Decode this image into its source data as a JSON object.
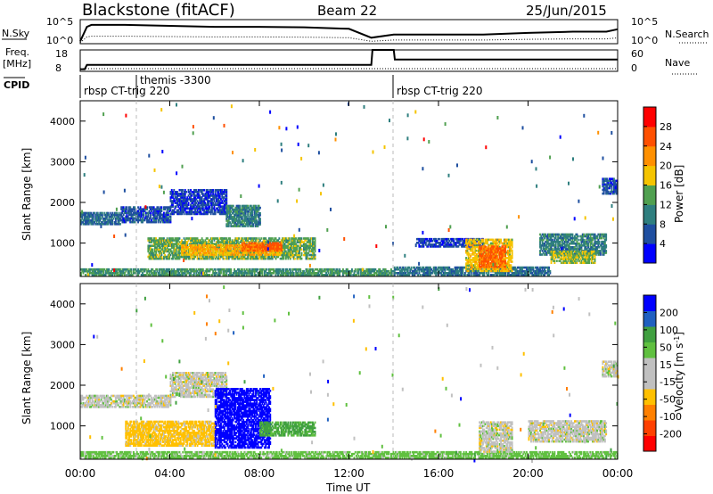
{
  "header": {
    "station": "Blackstone (fitACF)",
    "beam": "Beam 22",
    "date": "25/Jun/2015"
  },
  "top_panels": {
    "nsky_label": "N.Sky",
    "nsky_ticks": [
      "10^5",
      "10^0"
    ],
    "nsearch_label": "N.Search",
    "nsearch_ticks": [
      "10^5",
      "10^0"
    ],
    "freq_label": "Freq.",
    "freq_unit": "[MHz]",
    "freq_ticks": [
      "18",
      "8"
    ],
    "nave_label": "Nave",
    "nave_ticks": [
      "60",
      "0"
    ],
    "cpid_label": "CPID",
    "cpid_segments": [
      "rbsp CT-trig 220",
      "themis -3300",
      "rbsp CT-trig 220"
    ]
  },
  "colors": {
    "power_scale": [
      "#0000ff",
      "#1f4fa0",
      "#2f7f7f",
      "#50a050",
      "#f5c400",
      "#ff9000",
      "#ff5000",
      "#ff0000"
    ],
    "velocity_scale": [
      "#ff0000",
      "#ff4000",
      "#ff8000",
      "#ffc000",
      "#c0c0c0",
      "#c0c0c0",
      "#60c040",
      "#40a040",
      "#2060c0",
      "#0000ff"
    ]
  },
  "chart_data": [
    {
      "type": "heatmap",
      "name": "power",
      "ylabel": "Slant Range [km]",
      "ylim": [
        180,
        4500
      ],
      "yticks": [
        "1000",
        "2000",
        "3000",
        "4000"
      ],
      "colorbar_label": "Power [dB]",
      "colorbar_ticks": [
        "4",
        "8",
        "12",
        "16",
        "20",
        "24",
        "28"
      ],
      "regions": [
        {
          "t": [
            0.0,
            1.8
          ],
          "r": [
            1450,
            1750
          ],
          "v": 8
        },
        {
          "t": [
            1.8,
            4.0
          ],
          "r": [
            1500,
            1900
          ],
          "v": 6
        },
        {
          "t": [
            4.0,
            6.5
          ],
          "r": [
            1700,
            2300
          ],
          "v": 5
        },
        {
          "t": [
            6.5,
            8.0
          ],
          "r": [
            1400,
            1900
          ],
          "v": 10
        },
        {
          "t": [
            3.0,
            10.5
          ],
          "r": [
            600,
            1100
          ],
          "v": 14
        },
        {
          "t": [
            4.5,
            9.0
          ],
          "r": [
            700,
            950
          ],
          "v": 20
        },
        {
          "t": [
            7.2,
            9.0
          ],
          "r": [
            800,
            1000
          ],
          "v": 25
        },
        {
          "t": [
            0.0,
            14.0
          ],
          "r": [
            200,
            350
          ],
          "v": 12
        },
        {
          "t": [
            14.0,
            21.0
          ],
          "r": [
            200,
            400
          ],
          "v": 9
        },
        {
          "t": [
            15.0,
            18.0
          ],
          "r": [
            900,
            1100
          ],
          "v": 5
        },
        {
          "t": [
            17.2,
            19.3
          ],
          "r": [
            300,
            1100
          ],
          "v": 18
        },
        {
          "t": [
            17.8,
            19.0
          ],
          "r": [
            400,
            900
          ],
          "v": 25
        },
        {
          "t": [
            20.5,
            23.5
          ],
          "r": [
            700,
            1200
          ],
          "v": 10
        },
        {
          "t": [
            21.0,
            23.0
          ],
          "r": [
            500,
            800
          ],
          "v": 16
        },
        {
          "t": [
            23.3,
            24.0
          ],
          "r": [
            2200,
            2600
          ],
          "v": 6
        }
      ]
    },
    {
      "type": "heatmap",
      "name": "velocity",
      "ylabel": "Slant Range [km]",
      "ylim": [
        180,
        4500
      ],
      "yticks": [
        "1000",
        "2000",
        "3000",
        "4000"
      ],
      "xlabel": "Time UT",
      "xticks": [
        "00:00",
        "04:00",
        "08:00",
        "12:00",
        "16:00",
        "20:00",
        "00:00"
      ],
      "colorbar_label": "Velocity [m s",
      "colorbar_label_sup": "-1",
      "colorbar_label_end": "]",
      "colorbar_ticks": [
        "-200",
        "-100",
        "-50",
        "-15",
        "15",
        "50",
        "100",
        "200"
      ],
      "regions": [
        {
          "t": [
            0.0,
            4.0
          ],
          "r": [
            1450,
            1750
          ],
          "v": 0
        },
        {
          "t": [
            4.0,
            6.5
          ],
          "r": [
            1700,
            2300
          ],
          "v": 0
        },
        {
          "t": [
            2.0,
            6.0
          ],
          "r": [
            500,
            1100
          ],
          "v": -30
        },
        {
          "t": [
            6.0,
            8.5
          ],
          "r": [
            450,
            1900
          ],
          "v": 220
        },
        {
          "t": [
            8.0,
            10.5
          ],
          "r": [
            750,
            1100
          ],
          "v": 60
        },
        {
          "t": [
            0.0,
            24.0
          ],
          "r": [
            200,
            350
          ],
          "v": 30
        },
        {
          "t": [
            17.8,
            19.3
          ],
          "r": [
            350,
            1100
          ],
          "v": 0
        },
        {
          "t": [
            20.0,
            23.5
          ],
          "r": [
            600,
            1100
          ],
          "v": 0
        },
        {
          "t": [
            23.3,
            24.0
          ],
          "r": [
            2200,
            2600
          ],
          "v": 0
        }
      ]
    },
    {
      "type": "line",
      "name": "nsky",
      "x": [
        0,
        0.3,
        0.5,
        2,
        4,
        6,
        8,
        10,
        12,
        13,
        14,
        16,
        18,
        20,
        22,
        23.5,
        24
      ],
      "y": [
        0.1,
        0.7,
        0.78,
        0.78,
        0.74,
        0.7,
        0.7,
        0.68,
        0.62,
        0.25,
        0.38,
        0.38,
        0.38,
        0.45,
        0.5,
        0.5,
        0.6
      ]
    },
    {
      "type": "line",
      "name": "freq",
      "x": [
        0,
        0.2,
        0.3,
        13.0,
        13.05,
        14.0,
        14.05,
        24
      ],
      "y": [
        0.1,
        0.1,
        0.3,
        0.3,
        1.0,
        1.0,
        0.55,
        0.55
      ]
    }
  ]
}
